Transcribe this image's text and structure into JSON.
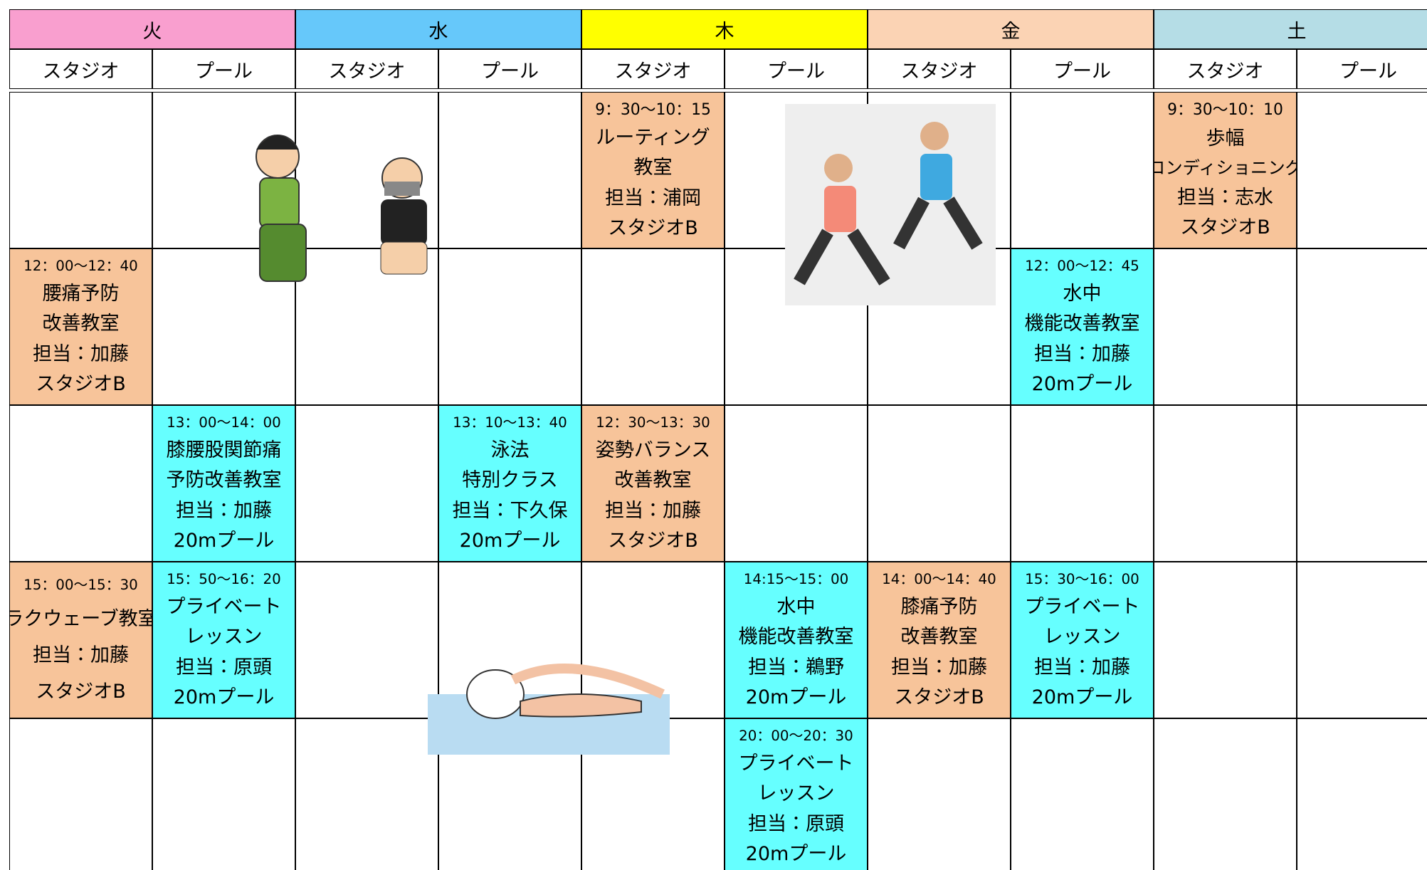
{
  "days": [
    {
      "name": "火",
      "color": "#f99fcf",
      "columns": [
        "スタジオ",
        "プール"
      ]
    },
    {
      "name": "水",
      "color": "#66c8fa",
      "columns": [
        "スタジオ",
        "プール"
      ]
    },
    {
      "name": "木",
      "color": "#ffff00",
      "columns": [
        "スタジオ",
        "プール"
      ]
    },
    {
      "name": "金",
      "color": "#fbd3b4",
      "columns": [
        "スタジオ",
        "プール"
      ]
    },
    {
      "name": "土",
      "color": "#b5dde6",
      "columns": [
        "スタジオ",
        "プール"
      ]
    }
  ],
  "rows": [
    [
      null,
      null,
      null,
      null,
      {
        "color": "#f7c49a",
        "lines": [
          "9：30〜10：15",
          "ルーティング",
          "教室",
          "担当：浦岡",
          "スタジオB"
        ]
      },
      null,
      null,
      null,
      {
        "color": "#f7c49a",
        "lines": [
          "9：30〜10：10",
          "歩幅",
          "コンディショニング",
          "担当：志水",
          "スタジオB"
        ]
      },
      null
    ],
    [
      {
        "color": "#f7c49a",
        "lines": [
          "12：00〜12：40",
          "腰痛予防",
          "改善教室",
          "担当：加藤",
          "スタジオB"
        ]
      },
      null,
      null,
      null,
      null,
      null,
      null,
      {
        "color": "#66ffff",
        "lines": [
          "12：00〜12：45",
          "水中",
          "機能改善教室",
          "担当：加藤",
          "20mプール"
        ]
      },
      null,
      null
    ],
    [
      null,
      {
        "color": "#66ffff",
        "lines": [
          "13：00〜14：00",
          "膝腰股関節痛",
          "予防改善教室",
          "担当：加藤",
          "20mプール"
        ]
      },
      null,
      {
        "color": "#66ffff",
        "lines": [
          "13：10〜13：40",
          "泳法",
          "特別クラス",
          "担当：下久保",
          "20mプール"
        ]
      },
      {
        "color": "#f7c49a",
        "lines": [
          "12：30〜13：30",
          "姿勢バランス",
          "改善教室",
          "担当：加藤",
          "スタジオB"
        ]
      },
      null,
      null,
      null,
      null,
      null
    ],
    [
      {
        "color": "#f7c49a",
        "lines": [
          "15：00〜15：30",
          "ラクウェーブ教室",
          "担当：加藤",
          "スタジオB"
        ]
      },
      {
        "color": "#66ffff",
        "lines": [
          "15：50〜16：20",
          "プライベート",
          "レッスン",
          "担当：原頭",
          "20mプール"
        ]
      },
      null,
      null,
      null,
      {
        "color": "#66ffff",
        "lines": [
          "14:15〜15：00",
          "水中",
          "機能改善教室",
          "担当：鵜野",
          "20mプール"
        ]
      },
      {
        "color": "#f7c49a",
        "lines": [
          "14：00〜14：40",
          "膝痛予防",
          "改善教室",
          "担当：加藤",
          "スタジオB"
        ]
      },
      {
        "color": "#66ffff",
        "lines": [
          "15：30〜16：00",
          "プライベート",
          "レッスン",
          "担当：加藤",
          "20mプール"
        ]
      },
      null,
      null
    ],
    [
      null,
      null,
      null,
      null,
      null,
      {
        "color": "#66ffff",
        "lines": [
          "20：00〜20：30",
          "プライベート",
          "レッスン",
          "担当：原頭",
          "20mプール"
        ]
      },
      null,
      null,
      null,
      null
    ]
  ]
}
